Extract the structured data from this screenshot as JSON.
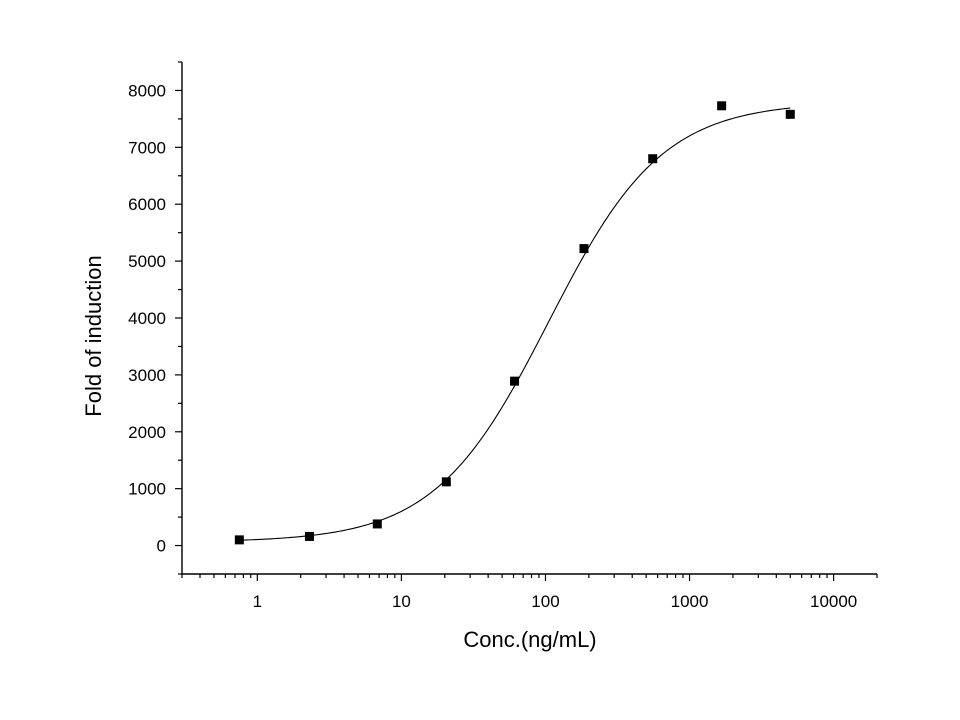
{
  "chart_data": {
    "type": "scatter",
    "title": "",
    "xlabel": "Conc.(ng/mL)",
    "ylabel": "Fold of induction",
    "x_scale": "log",
    "xlim": [
      0.3,
      20000
    ],
    "ylim": [
      -500,
      8500
    ],
    "x_ticks": [
      1,
      10,
      100,
      1000,
      10000
    ],
    "x_tick_labels": [
      "1",
      "10",
      "100",
      "1000",
      "10000"
    ],
    "y_ticks": [
      0,
      1000,
      2000,
      3000,
      4000,
      5000,
      6000,
      7000,
      8000
    ],
    "y_tick_labels": [
      "0",
      "1000",
      "2000",
      "3000",
      "4000",
      "5000",
      "6000",
      "7000",
      "8000"
    ],
    "grid": false,
    "series": [
      {
        "marker": "square",
        "x": [
          0.75,
          2.3,
          6.8,
          20.5,
          61,
          185,
          555,
          1670,
          5000
        ],
        "y": [
          100,
          160,
          380,
          1120,
          2890,
          5220,
          6800,
          7730,
          7580
        ]
      }
    ],
    "fit_curve": {
      "type": "4PL",
      "bottom": 60,
      "top": 7800,
      "ec50": 105,
      "hill": 1.1,
      "x_range": [
        0.75,
        5000
      ]
    },
    "colors": {
      "marker": "#000000",
      "curve": "#000000",
      "axes": "#000000"
    }
  }
}
